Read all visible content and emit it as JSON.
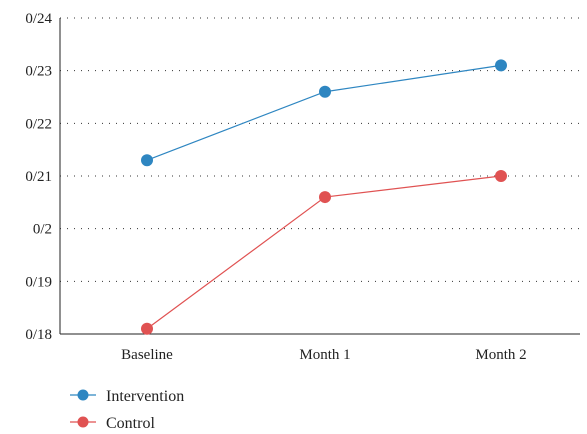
{
  "chart_data": {
    "type": "line",
    "title": "",
    "xlabel": "",
    "ylabel": "",
    "categories": [
      "Baseline",
      "Month 1",
      "Month 2"
    ],
    "y_ticks": [
      0.18,
      0.19,
      0.2,
      0.21,
      0.22,
      0.23,
      0.24
    ],
    "y_tick_labels": [
      "0/18",
      "0/19",
      "0/2",
      "0/21",
      "0/22",
      "0/23",
      "0/24"
    ],
    "ylim": [
      0.18,
      0.24
    ],
    "grid": "horizontal-dotted",
    "legend_position": "bottom-left",
    "series": [
      {
        "name": "Intervention",
        "color": "#2e86c1",
        "values": [
          0.213,
          0.226,
          0.231
        ]
      },
      {
        "name": "Control",
        "color": "#e05252",
        "values": [
          0.181,
          0.206,
          0.21
        ]
      }
    ]
  }
}
